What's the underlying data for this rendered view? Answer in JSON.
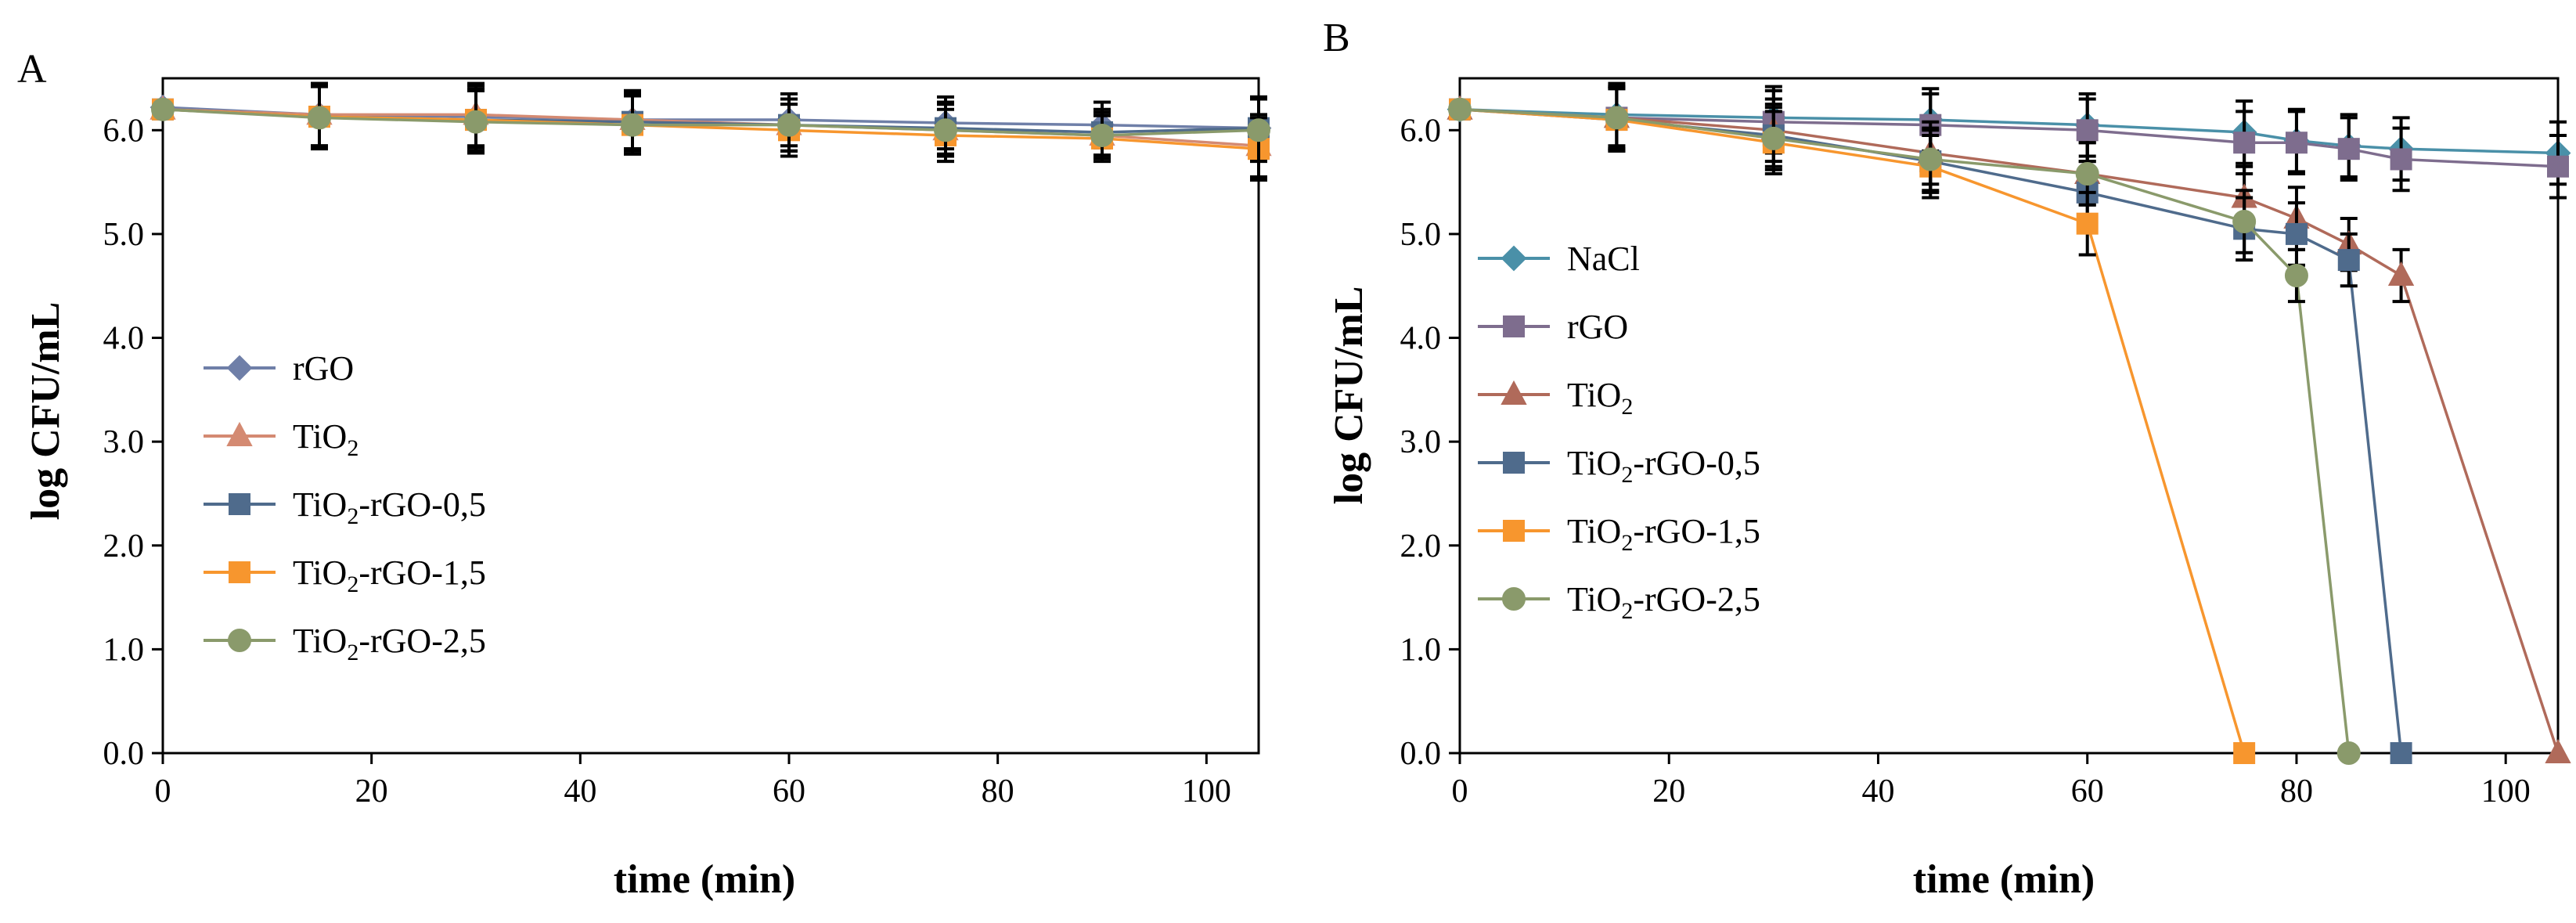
{
  "colors": {
    "axis": "#000000",
    "errorbar": "#000000",
    "nacl": "#4a90a8",
    "rgo": "#7e6d8e",
    "tio2": "#b06a5a",
    "tio2_rgo_05": "#4f6b8c",
    "tio2_rgo_15": "#f7962e",
    "tio2_rgo_25": "#8a9a6b",
    "rgo_a": "#6f7fa8",
    "tio2_a": "#d48a72"
  },
  "chart_data": [
    {
      "panel_label": "A",
      "type": "line",
      "xlabel": "time (min)",
      "ylabel": "log CFU/mL",
      "xlim": [
        0,
        105
      ],
      "ylim": [
        0,
        6.5
      ],
      "xticks": [
        0,
        20,
        40,
        60,
        80,
        100
      ],
      "yticks": [
        0,
        1,
        2,
        3,
        4,
        5,
        6
      ],
      "ytick_labels": [
        "0.0",
        "1.0",
        "2.0",
        "3.0",
        "4.0",
        "5.0",
        "6.0"
      ],
      "legend_position": "left-middle",
      "series": [
        {
          "name": "rGO",
          "base": "rGO",
          "sub": "",
          "suffix": "",
          "color": "#6f7fa8",
          "marker": "diamond",
          "x": [
            0,
            15,
            30,
            45,
            60,
            75,
            90,
            105
          ],
          "y": [
            6.22,
            6.15,
            6.13,
            6.1,
            6.1,
            6.07,
            6.05,
            6.02
          ],
          "err": [
            0.05,
            0.3,
            0.3,
            0.28,
            0.25,
            0.25,
            0.22,
            0.3
          ]
        },
        {
          "name": "TiO2",
          "base": "TiO",
          "sub": "2",
          "suffix": "",
          "color": "#d48a72",
          "marker": "triangle",
          "x": [
            0,
            15,
            30,
            45,
            60,
            75,
            90,
            105
          ],
          "y": [
            6.2,
            6.15,
            6.15,
            6.1,
            6.05,
            6.0,
            5.95,
            5.85
          ],
          "err": [
            0.05,
            0.3,
            0.3,
            0.28,
            0.25,
            0.25,
            0.22,
            0.3
          ]
        },
        {
          "name": "TiO2-rGO-0,5",
          "base": "TiO",
          "sub": "2",
          "suffix": "-rGO-0,5",
          "color": "#4f6b8c",
          "marker": "square",
          "x": [
            0,
            15,
            30,
            45,
            60,
            75,
            90,
            105
          ],
          "y": [
            6.2,
            6.13,
            6.1,
            6.08,
            6.05,
            6.02,
            5.98,
            6.02
          ],
          "err": [
            0.05,
            0.3,
            0.3,
            0.28,
            0.25,
            0.25,
            0.22,
            0.3
          ]
        },
        {
          "name": "TiO2-rGO-1,5",
          "base": "TiO",
          "sub": "2",
          "suffix": "-rGO-1,5",
          "color": "#f7962e",
          "marker": "square",
          "x": [
            0,
            15,
            30,
            45,
            60,
            75,
            90,
            105
          ],
          "y": [
            6.2,
            6.13,
            6.1,
            6.05,
            6.0,
            5.95,
            5.92,
            5.82
          ],
          "err": [
            0.05,
            0.3,
            0.3,
            0.28,
            0.25,
            0.25,
            0.22,
            0.3
          ]
        },
        {
          "name": "TiO2-rGO-2,5",
          "base": "TiO",
          "sub": "2",
          "suffix": "-rGO-2,5",
          "color": "#8a9a6b",
          "marker": "circle",
          "x": [
            0,
            15,
            30,
            45,
            60,
            75,
            90,
            105
          ],
          "y": [
            6.2,
            6.12,
            6.08,
            6.05,
            6.05,
            6.0,
            5.95,
            6.0
          ],
          "err": [
            0.05,
            0.3,
            0.3,
            0.28,
            0.25,
            0.25,
            0.22,
            0.3
          ]
        }
      ]
    },
    {
      "panel_label": "B",
      "type": "line",
      "xlabel": "time (min)",
      "ylabel": "log CFU/mL",
      "xlim": [
        0,
        105
      ],
      "ylim": [
        0,
        6.5
      ],
      "xticks": [
        0,
        20,
        40,
        60,
        80,
        100
      ],
      "yticks": [
        0,
        1,
        2,
        3,
        4,
        5,
        6
      ],
      "ytick_labels": [
        "0.0",
        "1.0",
        "2.0",
        "3.0",
        "4.0",
        "5.0",
        "6.0"
      ],
      "legend_position": "left-middle",
      "series": [
        {
          "name": "NaCl",
          "base": "NaCl",
          "sub": "",
          "suffix": "",
          "color": "#4a90a8",
          "marker": "diamond",
          "x": [
            0,
            15,
            30,
            45,
            60,
            75,
            80,
            85,
            90,
            105
          ],
          "y": [
            6.2,
            6.15,
            6.12,
            6.1,
            6.05,
            5.98,
            5.9,
            5.85,
            5.82,
            5.78
          ],
          "err": [
            0.05,
            0.3,
            0.3,
            0.3,
            0.3,
            0.3,
            0.3,
            0.3,
            0.3,
            0.3
          ]
        },
        {
          "name": "rGO",
          "base": "rGO",
          "sub": "",
          "suffix": "",
          "color": "#7e6d8e",
          "marker": "square",
          "x": [
            0,
            15,
            30,
            45,
            60,
            75,
            80,
            85,
            90,
            105
          ],
          "y": [
            6.2,
            6.12,
            6.08,
            6.05,
            6.0,
            5.88,
            5.88,
            5.82,
            5.72,
            5.65
          ],
          "err": [
            0.05,
            0.3,
            0.3,
            0.3,
            0.3,
            0.3,
            0.3,
            0.3,
            0.3,
            0.3
          ]
        },
        {
          "name": "TiO2",
          "base": "TiO",
          "sub": "2",
          "suffix": "",
          "color": "#b06a5a",
          "marker": "triangle",
          "x": [
            0,
            15,
            30,
            45,
            60,
            75,
            80,
            85,
            90,
            105
          ],
          "y": [
            6.2,
            6.12,
            6.0,
            5.78,
            5.58,
            5.35,
            5.15,
            4.9,
            4.6,
            0.0
          ],
          "err": [
            0.05,
            0.3,
            0.3,
            0.3,
            0.3,
            0.3,
            0.3,
            0.25,
            0.25,
            0
          ]
        },
        {
          "name": "TiO2-rGO-0,5",
          "base": "TiO",
          "sub": "2",
          "suffix": "-rGO-0,5",
          "color": "#4f6b8c",
          "marker": "square",
          "x": [
            0,
            15,
            30,
            45,
            60,
            75,
            80,
            85,
            90
          ],
          "y": [
            6.2,
            6.1,
            5.95,
            5.7,
            5.4,
            5.05,
            5.0,
            4.75,
            0.0
          ],
          "err": [
            0.05,
            0.3,
            0.3,
            0.3,
            0.3,
            0.3,
            0.3,
            0.25,
            0
          ]
        },
        {
          "name": "TiO2-rGO-1,5",
          "base": "TiO",
          "sub": "2",
          "suffix": "-rGO-1,5",
          "color": "#f7962e",
          "marker": "square",
          "x": [
            0,
            15,
            30,
            45,
            60,
            75
          ],
          "y": [
            6.2,
            6.1,
            5.88,
            5.65,
            5.1,
            0.0
          ],
          "err": [
            0.05,
            0.3,
            0.3,
            0.3,
            0.3,
            0
          ]
        },
        {
          "name": "TiO2-rGO-2,5",
          "base": "TiO",
          "sub": "2",
          "suffix": "-rGO-2,5",
          "color": "#8a9a6b",
          "marker": "circle",
          "x": [
            0,
            15,
            30,
            45,
            60,
            75,
            80,
            85
          ],
          "y": [
            6.2,
            6.12,
            5.92,
            5.72,
            5.58,
            5.12,
            4.6,
            0.0
          ],
          "err": [
            0.05,
            0.3,
            0.3,
            0.3,
            0.3,
            0.3,
            0.25,
            0
          ]
        }
      ]
    }
  ]
}
